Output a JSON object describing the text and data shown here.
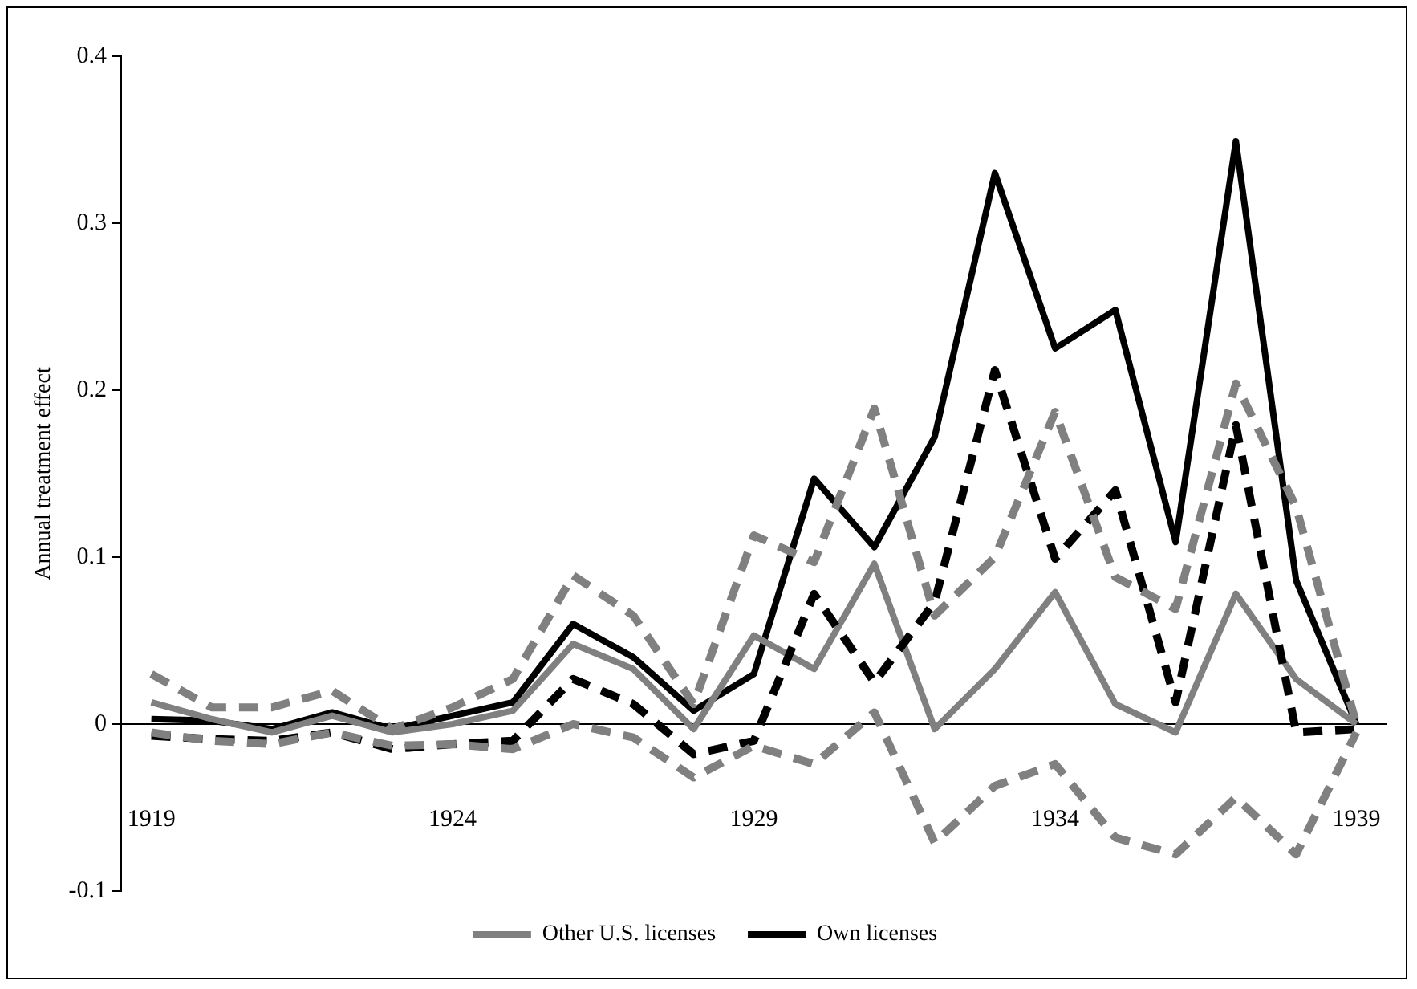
{
  "chart_data": {
    "type": "line",
    "ylabel": "Annual treatment effect",
    "categories": [
      "1919",
      null,
      null,
      null,
      null,
      "1924",
      null,
      null,
      null,
      null,
      "1929",
      null,
      null,
      null,
      null,
      "1934",
      null,
      null,
      null,
      null,
      "1939"
    ],
    "series": [
      {
        "color": "#808080",
        "line_style": "dashed",
        "values": [
          0.03,
          0.01,
          0.01,
          0.02,
          -0.003,
          0.01,
          0.027,
          0.089,
          0.065,
          0.012,
          0.113,
          0.097,
          0.189,
          0.065,
          0.1,
          0.187,
          0.088,
          0.069,
          0.204,
          0.13,
          0
        ]
      },
      {
        "color": "#808080",
        "line_style": "dashed",
        "values": [
          -0.005,
          -0.01,
          -0.012,
          -0.005,
          -0.013,
          -0.012,
          -0.015,
          0,
          -0.008,
          -0.032,
          -0.013,
          -0.024,
          0.007,
          -0.071,
          -0.037,
          -0.024,
          -0.068,
          -0.078,
          -0.044,
          -0.078,
          -0.005
        ]
      },
      {
        "color": "#000000",
        "line_style": "dashed",
        "values": [
          -0.007,
          -0.009,
          -0.01,
          -0.005,
          -0.015,
          -0.012,
          -0.01,
          0.027,
          0.012,
          -0.018,
          -0.01,
          0.078,
          0.025,
          0.073,
          0.212,
          0.099,
          0.14,
          0.013,
          0.179,
          -0.005,
          -0.003
        ]
      },
      {
        "name": "Other U.S. licenses",
        "color": "#808080",
        "line_style": "solid",
        "values": [
          0.013,
          0.003,
          -0.005,
          0.005,
          -0.005,
          0,
          0.008,
          0.048,
          0.033,
          -0.003,
          0.053,
          0.033,
          0.096,
          -0.003,
          0.033,
          0.079,
          0.012,
          -0.005,
          0.078,
          0.027,
          0
        ]
      },
      {
        "name": "Own licenses",
        "color": "#000000",
        "line_style": "solid",
        "values": [
          0.003,
          0.002,
          -0.003,
          0.007,
          -0.003,
          0.005,
          0.013,
          0.06,
          0.04,
          0.008,
          0.03,
          0.147,
          0.106,
          0.172,
          0.33,
          0.225,
          0.248,
          0.109,
          0.349,
          0.086,
          0
        ]
      }
    ],
    "ylim": [
      -0.1,
      0.4
    ],
    "yticks": [
      -0.1,
      0,
      0.1,
      0.2,
      0.3,
      0.4
    ],
    "legend": "bottom",
    "marker": "none"
  }
}
